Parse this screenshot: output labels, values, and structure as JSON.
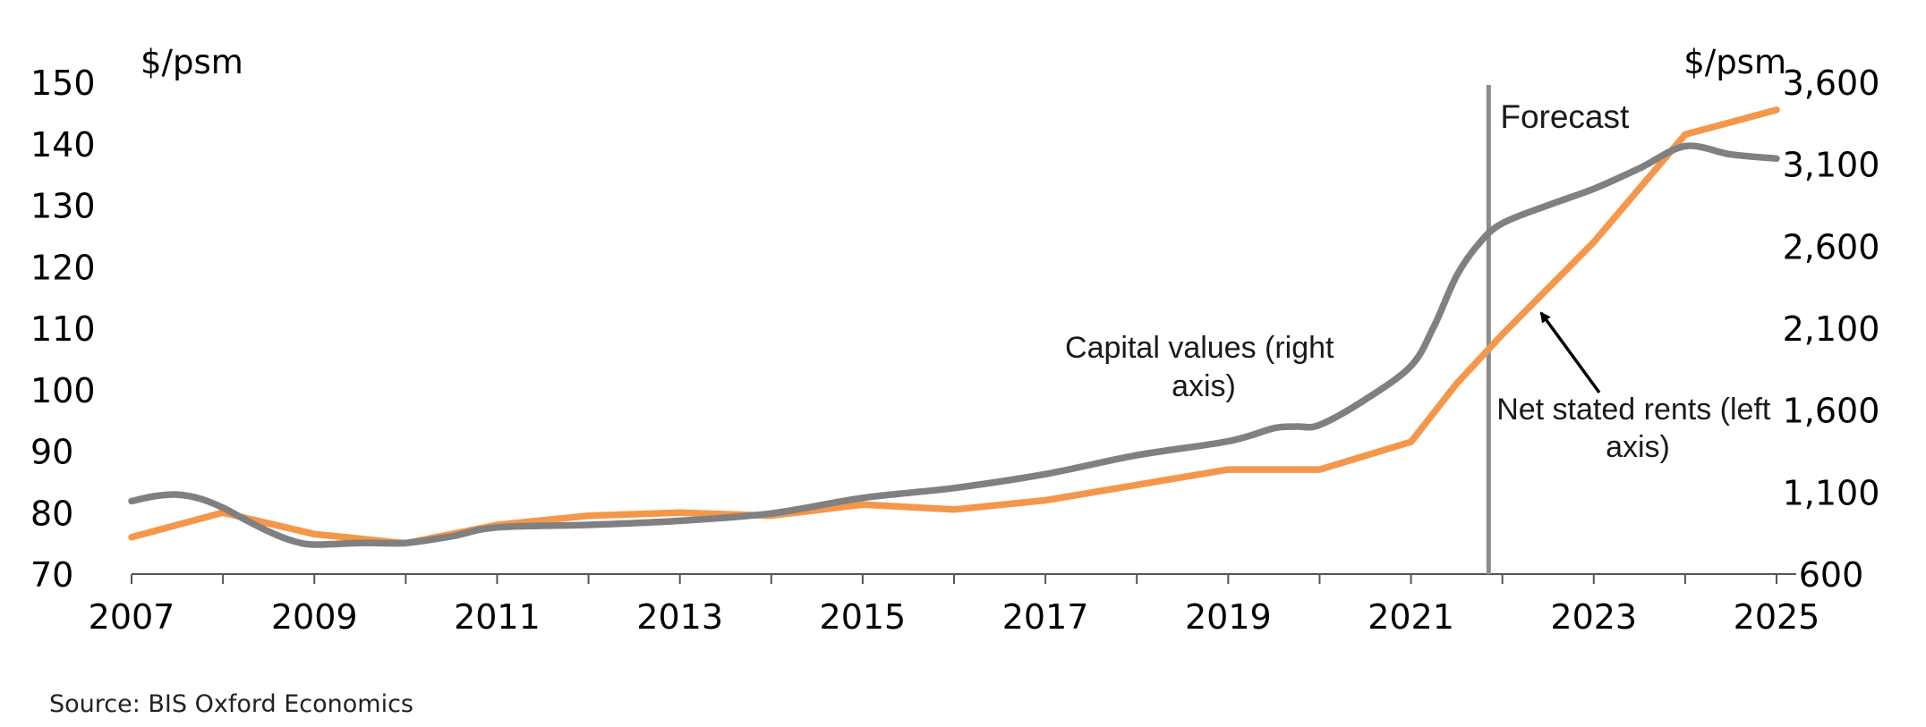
{
  "chart_data": {
    "type": "line",
    "left_axis": {
      "unit_label": "$/psm",
      "ylim": [
        70,
        150
      ],
      "ticks": [
        70,
        80,
        90,
        100,
        110,
        120,
        130,
        140,
        150
      ],
      "tick_labels": [
        "70",
        "80",
        "90",
        "100",
        "110",
        "120",
        "130",
        "140",
        "150"
      ]
    },
    "right_axis": {
      "unit_label": "$/psm",
      "ylim": [
        600,
        3600
      ],
      "ticks": [
        600,
        1100,
        1600,
        2100,
        2600,
        3100,
        3600
      ],
      "tick_labels": [
        "600",
        "1,100",
        "1,600",
        "2,100",
        "2,600",
        "3,100",
        "3,600"
      ]
    },
    "x_axis": {
      "xlim": [
        2007,
        2025
      ],
      "ticks": [
        2007,
        2008,
        2009,
        2010,
        2011,
        2012,
        2013,
        2014,
        2015,
        2016,
        2017,
        2018,
        2019,
        2020,
        2021,
        2022,
        2023,
        2024,
        2025
      ],
      "labeled_ticks": [
        2007,
        2009,
        2011,
        2013,
        2015,
        2017,
        2019,
        2021,
        2023,
        2025
      ],
      "tick_labels": [
        "2007",
        "2009",
        "2011",
        "2013",
        "2015",
        "2017",
        "2019",
        "2021",
        "2023",
        "2025"
      ]
    },
    "series": [
      {
        "name": "Net stated rents (left axis)",
        "axis": "left",
        "color": "#f5974a",
        "x": [
          2007,
          2008,
          2009,
          2010,
          2011,
          2012,
          2013,
          2014,
          2015,
          2016,
          2017,
          2018,
          2019,
          2020,
          2021,
          2021.5,
          2022,
          2023,
          2024,
          2025
        ],
        "y": [
          76,
          80,
          76.5,
          75,
          78,
          79.5,
          80,
          79.5,
          81.3,
          80.5,
          82,
          84.5,
          87,
          87,
          91.5,
          101,
          109,
          124,
          141.5,
          145.5
        ]
      },
      {
        "name": "Capital values (right axis)",
        "axis": "right",
        "color": "#808080",
        "x": [
          2007,
          2007.25,
          2007.5,
          2007.75,
          2008,
          2008.25,
          2008.5,
          2008.75,
          2009,
          2009.5,
          2010,
          2010.5,
          2011,
          2012,
          2013,
          2014,
          2015,
          2016,
          2017,
          2018,
          2019,
          2019.5,
          2019.75,
          2020,
          2020.5,
          2021,
          2021.25,
          2021.5,
          2021.75,
          2022,
          2022.5,
          2023,
          2023.5,
          2024,
          2024.5,
          2025
        ],
        "y": [
          1045,
          1075,
          1085,
          1060,
          1005,
          930,
          860,
          805,
          780,
          790,
          790,
          830,
          885,
          900,
          925,
          970,
          1065,
          1125,
          1210,
          1325,
          1410,
          1490,
          1500,
          1510,
          1665,
          1870,
          2110,
          2420,
          2620,
          2740,
          2850,
          2950,
          3075,
          3210,
          3160,
          3135
        ]
      }
    ],
    "forecast_start": 2021.85,
    "forecast_label": "Forecast",
    "annotations": {
      "capital_values": [
        "Capital values (right",
        "axis)"
      ],
      "net_rents": [
        "Net stated rents (left",
        "axis)"
      ]
    },
    "legend": "none",
    "grid": false
  },
  "source": "Source: BIS Oxford Economics"
}
